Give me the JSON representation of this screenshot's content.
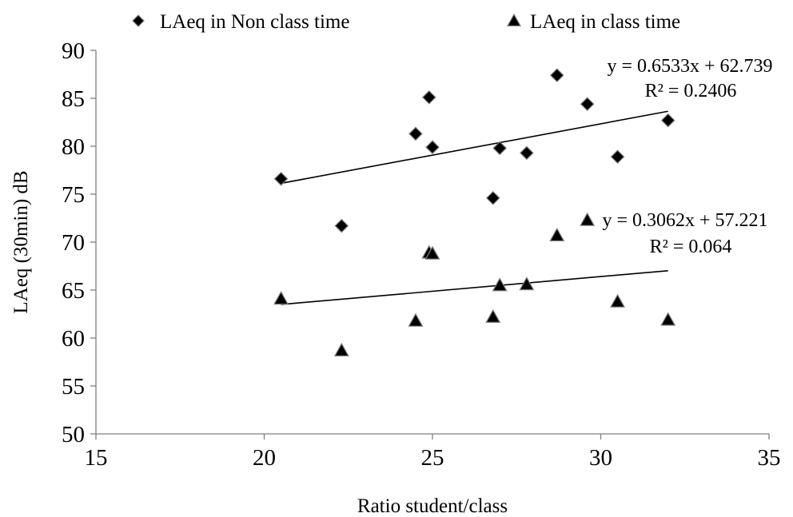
{
  "chart_data": {
    "type": "scatter",
    "xlabel": "Ratio student/class",
    "ylabel": "LAeq (30min) dB",
    "xlim": [
      15,
      35
    ],
    "ylim": [
      50,
      90
    ],
    "xticks": [
      15,
      20,
      25,
      30,
      35
    ],
    "yticks": [
      50,
      55,
      60,
      65,
      70,
      75,
      80,
      85,
      90
    ],
    "grid": false,
    "legend_position": "top",
    "series": [
      {
        "name": "LAeq in Non class time",
        "marker": "diamond",
        "color": "#000000",
        "points": [
          {
            "x": 20.5,
            "y": 76.6
          },
          {
            "x": 22.3,
            "y": 71.7
          },
          {
            "x": 24.5,
            "y": 81.3
          },
          {
            "x": 24.9,
            "y": 85.1
          },
          {
            "x": 25.0,
            "y": 79.9
          },
          {
            "x": 26.8,
            "y": 74.6
          },
          {
            "x": 27.0,
            "y": 79.8
          },
          {
            "x": 27.8,
            "y": 79.3
          },
          {
            "x": 28.7,
            "y": 87.4
          },
          {
            "x": 29.6,
            "y": 84.4
          },
          {
            "x": 30.5,
            "y": 78.9
          },
          {
            "x": 32.0,
            "y": 82.7
          }
        ],
        "trendline": {
          "slope": 0.6533,
          "intercept": 62.739,
          "x_range": [
            20.5,
            32.0
          ],
          "equation": "y = 0.6533x + 62.739",
          "r2": "R² = 0.2406"
        }
      },
      {
        "name": "LAeq in class time",
        "marker": "triangle",
        "color": "#000000",
        "points": [
          {
            "x": 20.5,
            "y": 64.1
          },
          {
            "x": 22.3,
            "y": 58.7
          },
          {
            "x": 24.5,
            "y": 61.8
          },
          {
            "x": 24.9,
            "y": 68.9
          },
          {
            "x": 25.0,
            "y": 68.8
          },
          {
            "x": 26.8,
            "y": 62.2
          },
          {
            "x": 27.0,
            "y": 65.5
          },
          {
            "x": 27.8,
            "y": 65.6
          },
          {
            "x": 28.7,
            "y": 70.7
          },
          {
            "x": 29.6,
            "y": 72.3
          },
          {
            "x": 30.5,
            "y": 63.8
          },
          {
            "x": 32.0,
            "y": 61.9
          }
        ],
        "trendline": {
          "slope": 0.3062,
          "intercept": 57.221,
          "x_range": [
            20.5,
            32.0
          ],
          "equation": "y = 0.3062x + 57.221",
          "r2": "R² = 0.064"
        }
      }
    ]
  }
}
